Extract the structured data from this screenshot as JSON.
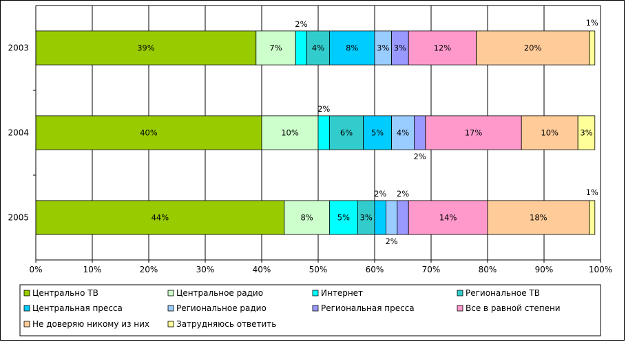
{
  "chart_data": {
    "type": "bar",
    "orientation": "horizontal",
    "stacked": "percent",
    "categories": [
      "2003",
      "2004",
      "2005"
    ],
    "xlim": [
      0,
      100
    ],
    "xticks": [
      "0%",
      "10%",
      "20%",
      "30%",
      "40%",
      "50%",
      "60%",
      "70%",
      "80%",
      "90%",
      "100%"
    ],
    "grid": true,
    "legend_position": "bottom",
    "series": [
      {
        "name": "Центрально ТВ",
        "color": "#99cc00",
        "values": [
          39,
          40,
          44
        ],
        "labels": [
          "39%",
          "40%",
          "44%"
        ]
      },
      {
        "name": "Центральное радио",
        "color": "#ccffcc",
        "values": [
          7,
          10,
          8
        ],
        "labels": [
          "7%",
          "10%",
          "8%"
        ]
      },
      {
        "name": "Интернет",
        "color": "#00ffff",
        "values": [
          2,
          2,
          5
        ],
        "labels": [
          "2%",
          "2%",
          "5%"
        ]
      },
      {
        "name": "Региональное ТВ",
        "color": "#33cccc",
        "values": [
          4,
          6,
          3
        ],
        "labels": [
          "4%",
          "6%",
          "3%"
        ]
      },
      {
        "name": "Центральная пресса",
        "color": "#00ccff",
        "values": [
          8,
          5,
          2
        ],
        "labels": [
          "8%",
          "5%",
          "2%"
        ]
      },
      {
        "name": "Региональное радио",
        "color": "#99ccff",
        "values": [
          3,
          4,
          2
        ],
        "labels": [
          "3%",
          "4%",
          "2%"
        ]
      },
      {
        "name": "Региональная пресса",
        "color": "#9999ff",
        "values": [
          3,
          2,
          2
        ],
        "labels": [
          "3%",
          "2%",
          "2%"
        ]
      },
      {
        "name": "Все в равной степени",
        "color": "#ff99cc",
        "values": [
          12,
          17,
          14
        ],
        "labels": [
          "12%",
          "17%",
          "14%"
        ]
      },
      {
        "name": "Не доверяю никому из них",
        "color": "#ffcc99",
        "values": [
          20,
          10,
          18
        ],
        "labels": [
          "20%",
          "10%",
          "18%"
        ]
      },
      {
        "name": "Затрудняюсь ответить",
        "color": "#ffff99",
        "values": [
          1,
          3,
          1
        ],
        "labels": [
          "1%",
          "3%",
          "1%"
        ]
      }
    ]
  }
}
